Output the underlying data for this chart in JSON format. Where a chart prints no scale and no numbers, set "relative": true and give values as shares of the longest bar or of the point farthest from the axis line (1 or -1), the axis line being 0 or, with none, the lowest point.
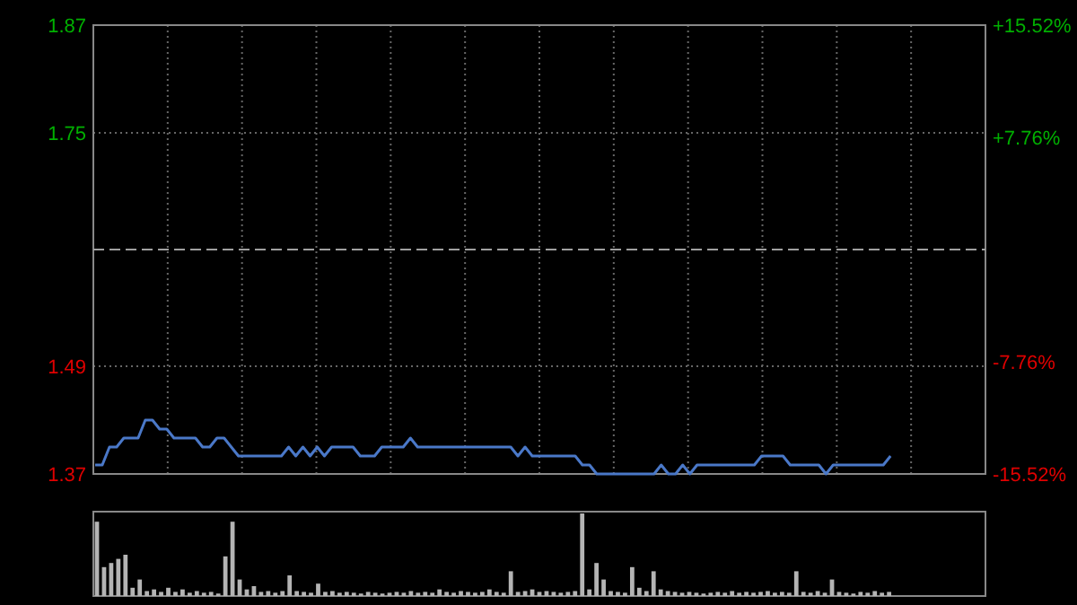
{
  "chart_data": [
    {
      "type": "line",
      "categories": [
        null,
        null,
        null,
        null,
        null,
        null,
        null,
        null,
        null,
        null,
        null,
        null,
        null,
        null,
        null,
        null,
        null,
        null,
        null,
        null,
        null,
        null,
        null,
        null,
        null,
        null,
        null,
        null,
        null,
        null,
        null,
        null,
        null,
        null,
        null,
        null,
        null,
        null,
        null,
        null,
        null,
        null,
        null,
        null,
        null,
        null,
        null,
        null,
        null,
        null,
        null,
        null,
        null,
        null,
        null,
        null,
        null,
        null,
        null,
        null,
        null,
        null,
        null,
        null,
        null,
        null,
        null,
        null,
        null,
        null,
        null,
        null,
        null,
        null,
        null,
        null,
        null,
        null,
        null,
        null,
        null,
        null,
        null,
        null,
        null,
        null,
        null,
        null,
        null,
        null,
        null,
        null,
        null,
        null,
        null,
        null,
        null,
        null,
        null,
        null,
        null,
        null,
        null,
        null,
        null,
        null,
        null,
        null,
        null,
        null,
        null,
        null,
        null,
        null,
        null,
        null,
        null,
        null,
        null,
        null,
        null,
        null,
        null,
        null,
        null
      ],
      "series": [
        {
          "color": "#4a78c8",
          "values": [
            1.38,
            1.38,
            1.4,
            1.4,
            1.41,
            1.41,
            1.41,
            1.43,
            1.43,
            1.42,
            1.42,
            1.41,
            1.41,
            1.41,
            1.41,
            1.4,
            1.4,
            1.41,
            1.41,
            1.4,
            1.39,
            1.39,
            1.39,
            1.39,
            1.39,
            1.39,
            1.39,
            1.4,
            1.39,
            1.4,
            1.39,
            1.4,
            1.39,
            1.4,
            1.4,
            1.4,
            1.4,
            1.39,
            1.39,
            1.39,
            1.4,
            1.4,
            1.4,
            1.4,
            1.41,
            1.4,
            1.4,
            1.4,
            1.4,
            1.4,
            1.4,
            1.4,
            1.4,
            1.4,
            1.4,
            1.4,
            1.4,
            1.4,
            1.4,
            1.39,
            1.4,
            1.39,
            1.39,
            1.39,
            1.39,
            1.39,
            1.39,
            1.39,
            1.38,
            1.38,
            1.37,
            1.37,
            1.37,
            1.37,
            1.37,
            1.37,
            1.37,
            1.37,
            1.37,
            1.38,
            1.37,
            1.37,
            1.38,
            1.37,
            1.38,
            1.38,
            1.38,
            1.38,
            1.38,
            1.38,
            1.38,
            1.38,
            1.38,
            1.39,
            1.39,
            1.39,
            1.39,
            1.38,
            1.38,
            1.38,
            1.38,
            1.38,
            1.37,
            1.38,
            1.38,
            1.38,
            1.38,
            1.38,
            1.38,
            1.38,
            1.38,
            1.39,
            null,
            null,
            null,
            null,
            null,
            null,
            null,
            null,
            null,
            null,
            null,
            null,
            null
          ]
        }
      ],
      "ylim": [
        1.37,
        1.87
      ],
      "yticks": [
        1.37,
        1.49,
        1.75,
        1.87
      ],
      "y2lim": [
        -15.52,
        15.52
      ],
      "y2ticks": [
        {
          "value": -15.52,
          "label": "-15.52%"
        },
        {
          "value": -7.76,
          "label": "-7.76%"
        },
        {
          "value": 7.76,
          "label": "+7.76%"
        },
        {
          "value": 15.52,
          "label": "+15.52%"
        }
      ],
      "ref_lines": [
        {
          "axis": "y",
          "value": 1.62,
          "color": "#a0a0a0",
          "line_style": "dashed"
        }
      ],
      "grid": true
    },
    {
      "type": "bar",
      "relative": true,
      "color": "#b4b4b4",
      "categories": [
        null,
        null,
        null,
        null,
        null,
        null,
        null,
        null,
        null,
        null,
        null,
        null,
        null,
        null,
        null,
        null,
        null,
        null,
        null,
        null,
        null,
        null,
        null,
        null,
        null,
        null,
        null,
        null,
        null,
        null,
        null,
        null,
        null,
        null,
        null,
        null,
        null,
        null,
        null,
        null,
        null,
        null,
        null,
        null,
        null,
        null,
        null,
        null,
        null,
        null,
        null,
        null,
        null,
        null,
        null,
        null,
        null,
        null,
        null,
        null,
        null,
        null,
        null,
        null,
        null,
        null,
        null,
        null,
        null,
        null,
        null,
        null,
        null,
        null,
        null,
        null,
        null,
        null,
        null,
        null,
        null,
        null,
        null,
        null,
        null,
        null,
        null,
        null,
        null,
        null,
        null,
        null,
        null,
        null,
        null,
        null,
        null,
        null,
        null,
        null,
        null,
        null,
        null,
        null,
        null,
        null,
        null,
        null,
        null,
        null,
        null,
        null,
        null,
        null,
        null,
        null,
        null,
        null,
        null,
        null,
        null,
        null,
        null,
        null,
        null
      ],
      "values": [
        0.9,
        0.35,
        0.4,
        0.45,
        0.5,
        0.1,
        0.2,
        0.06,
        0.08,
        0.05,
        0.1,
        0.05,
        0.08,
        0.04,
        0.06,
        0.04,
        0.05,
        0.03,
        0.48,
        0.9,
        0.2,
        0.08,
        0.12,
        0.05,
        0.06,
        0.04,
        0.06,
        0.25,
        0.06,
        0.05,
        0.04,
        0.15,
        0.05,
        0.06,
        0.04,
        0.05,
        0.04,
        0.03,
        0.05,
        0.04,
        0.03,
        0.04,
        0.05,
        0.04,
        0.06,
        0.04,
        0.05,
        0.04,
        0.08,
        0.05,
        0.04,
        0.06,
        0.05,
        0.04,
        0.05,
        0.08,
        0.05,
        0.04,
        0.3,
        0.05,
        0.06,
        0.08,
        0.05,
        0.06,
        0.05,
        0.04,
        0.05,
        0.06,
        1,
        0.08,
        0.4,
        0.2,
        0.06,
        0.05,
        0.04,
        0.35,
        0.1,
        0.06,
        0.3,
        0.08,
        0.06,
        0.05,
        0.04,
        0.05,
        0.04,
        0.03,
        0.04,
        0.05,
        0.04,
        0.06,
        0.04,
        0.05,
        0.04,
        0.05,
        0.06,
        0.04,
        0.05,
        0.04,
        0.3,
        0.05,
        0.04,
        0.06,
        0.04,
        0.2,
        0.05,
        0.04,
        0.03,
        0.05,
        0.04,
        0.06,
        0.04,
        0.05,
        null,
        null,
        null,
        null,
        null,
        null,
        null,
        null,
        null,
        null,
        null,
        null,
        null
      ]
    }
  ]
}
